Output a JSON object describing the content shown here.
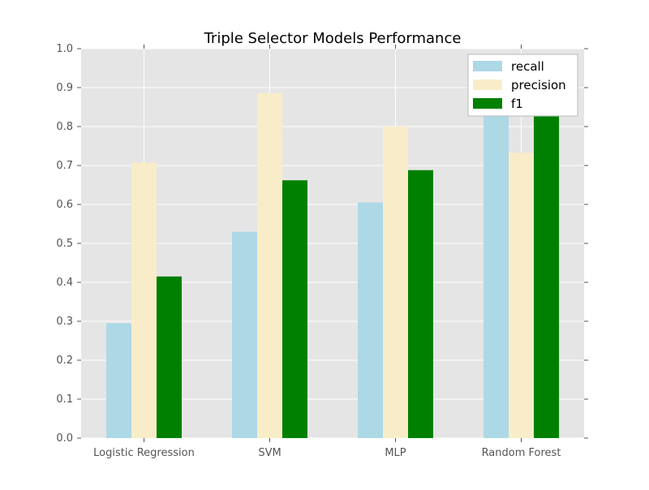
{
  "chart_data": {
    "type": "bar",
    "title": "Triple Selector Models Performance",
    "categories": [
      "Logistic Regression",
      "SVM",
      "MLP",
      "Random Forest"
    ],
    "series": [
      {
        "name": "recall",
        "color": "#add8e6",
        "values": [
          0.295,
          0.53,
          0.605,
          0.83
        ]
      },
      {
        "name": "precision",
        "color": "#f8edc8",
        "values": [
          0.708,
          0.886,
          0.8,
          0.733
        ]
      },
      {
        "name": "f1",
        "color": "#008000",
        "values": [
          0.415,
          0.662,
          0.688,
          0.826
        ]
      }
    ],
    "ylim": [
      0,
      1.0
    ],
    "yticks": [
      "0.0",
      "0.1",
      "0.2",
      "0.3",
      "0.4",
      "0.5",
      "0.6",
      "0.7",
      "0.8",
      "0.9",
      "1.0"
    ],
    "grid": true,
    "legend_position": "top-right",
    "plot_background": "#e5e5e5",
    "grid_color": "#ffffff"
  }
}
